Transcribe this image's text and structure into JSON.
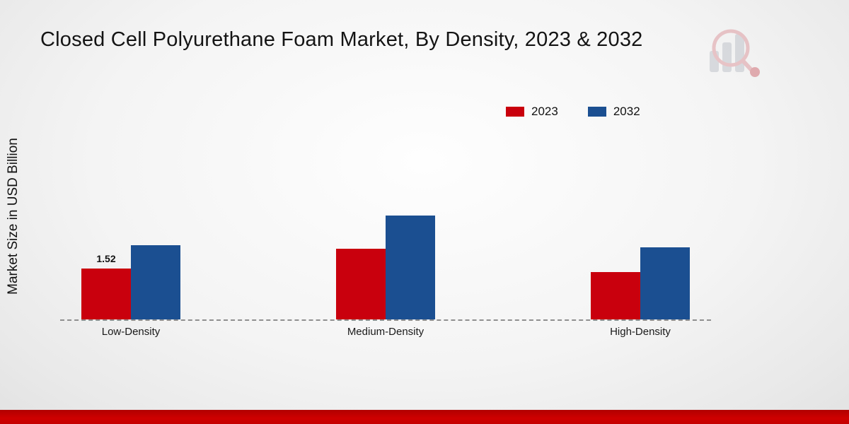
{
  "title": "Closed Cell Polyurethane Foam Market, By Density, 2023 & 2032",
  "y_axis_label": "Market Size in USD Billion",
  "legend": {
    "items": [
      {
        "label": "2023",
        "color": "#c9000d"
      },
      {
        "label": "2032",
        "color": "#1b4f91"
      }
    ],
    "position": "top-right"
  },
  "colors": {
    "series_2023": "#c9000d",
    "series_2032": "#1b4f91",
    "bottom_strip": "#c40000",
    "baseline": "#8f8f8f"
  },
  "chart_data": {
    "type": "bar",
    "title": "Closed Cell Polyurethane Foam Market, By Density, 2023 & 2032",
    "categories": [
      "Low-Density",
      "Medium-Density",
      "High-Density"
    ],
    "series": [
      {
        "name": "2023",
        "color": "#c9000d",
        "values": [
          1.52,
          2.1,
          1.4
        ],
        "labels": [
          "1.52",
          null,
          null
        ]
      },
      {
        "name": "2032",
        "color": "#1b4f91",
        "values": [
          2.2,
          3.1,
          2.15
        ],
        "labels": [
          null,
          null,
          null
        ]
      }
    ],
    "xlabel": "",
    "ylabel": "Market Size in USD Billion",
    "ylim": [
      0,
      3.5
    ],
    "grid": false,
    "baseline_style": "dashed",
    "legend_position": "top-right",
    "annotations": [
      {
        "category": "Low-Density",
        "series": "2023",
        "text": "1.52"
      }
    ]
  }
}
